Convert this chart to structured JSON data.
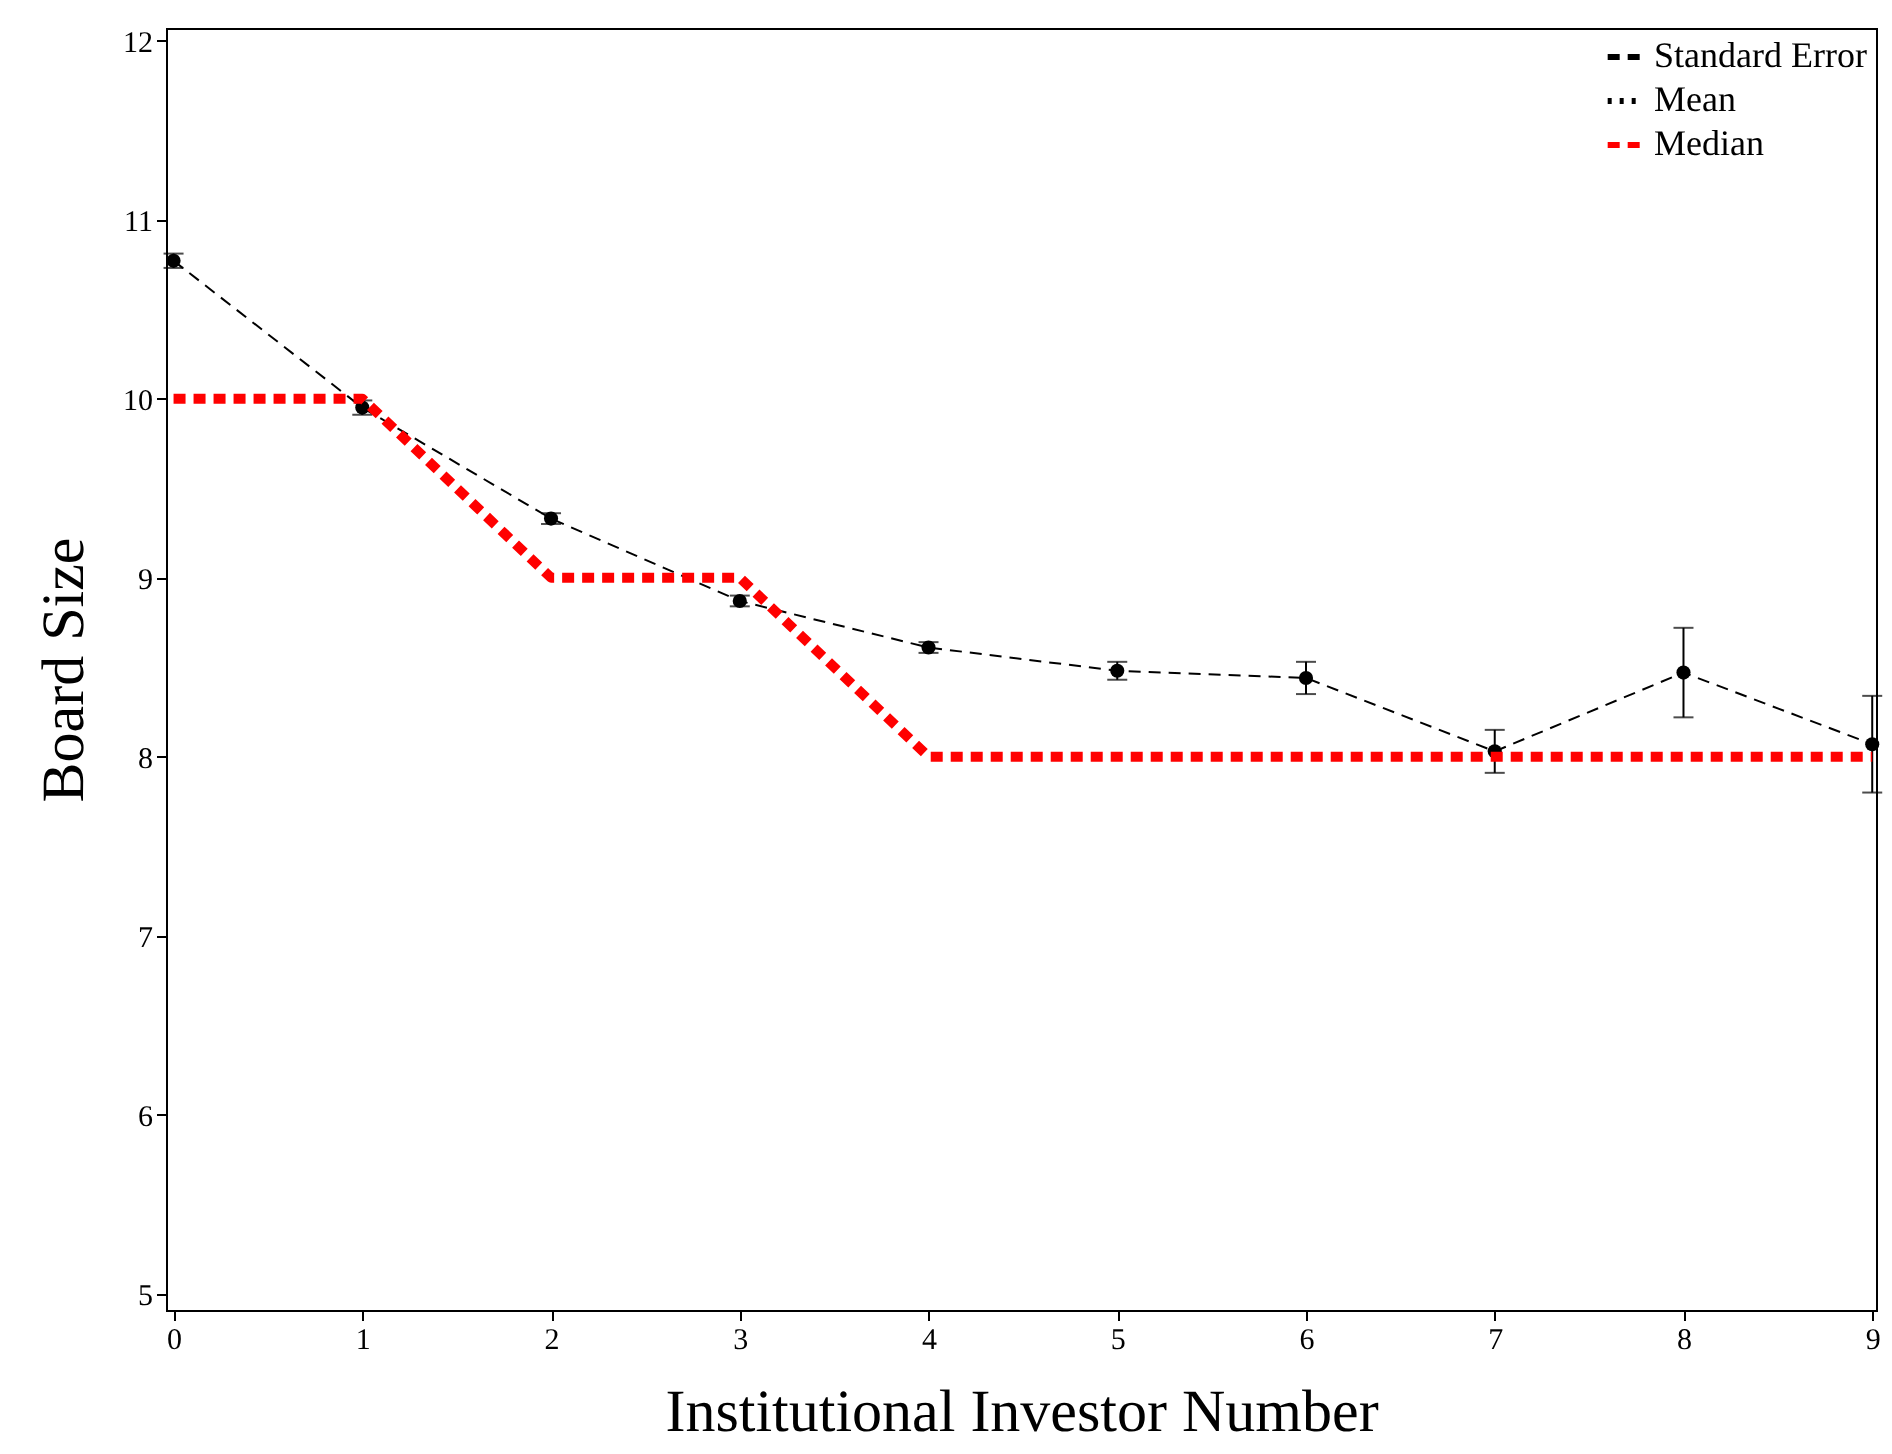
{
  "chart_data": {
    "type": "line",
    "xlabel": "Institutional Investor Number",
    "ylabel": "Board Size",
    "x": [
      0,
      1,
      2,
      3,
      4,
      5,
      6,
      7,
      8,
      9
    ],
    "xlim": [
      -0.04,
      9.02
    ],
    "xticks": [
      0,
      1,
      2,
      3,
      4,
      5,
      6,
      7,
      8,
      9
    ],
    "ylim": [
      4.91,
      12.07
    ],
    "yticks": [
      5,
      6,
      7,
      8,
      9,
      10,
      11,
      12
    ],
    "grid": false,
    "legend": "top right",
    "series": [
      {
        "name": "Standard Error",
        "color": "#000000",
        "line_style": "dashed",
        "marker": "none",
        "values": [
          10.77,
          9.95,
          9.33,
          8.87,
          8.61,
          8.48,
          8.44,
          8.03,
          8.47,
          8.07
        ]
      },
      {
        "name": "Mean",
        "type": "scatter",
        "color": "#000000",
        "marker": "circle",
        "values": [
          10.77,
          9.95,
          9.33,
          8.87,
          8.61,
          8.48,
          8.44,
          8.03,
          8.47,
          8.07
        ],
        "errors": [
          0.04,
          0.04,
          0.03,
          0.03,
          0.03,
          0.05,
          0.09,
          0.12,
          0.25,
          0.27
        ]
      },
      {
        "name": "Median",
        "color": "#ff0000",
        "line_style": "dashed",
        "marker": "none",
        "values": [
          10,
          10,
          9,
          9,
          8,
          8,
          8,
          8,
          8,
          8
        ]
      }
    ]
  }
}
